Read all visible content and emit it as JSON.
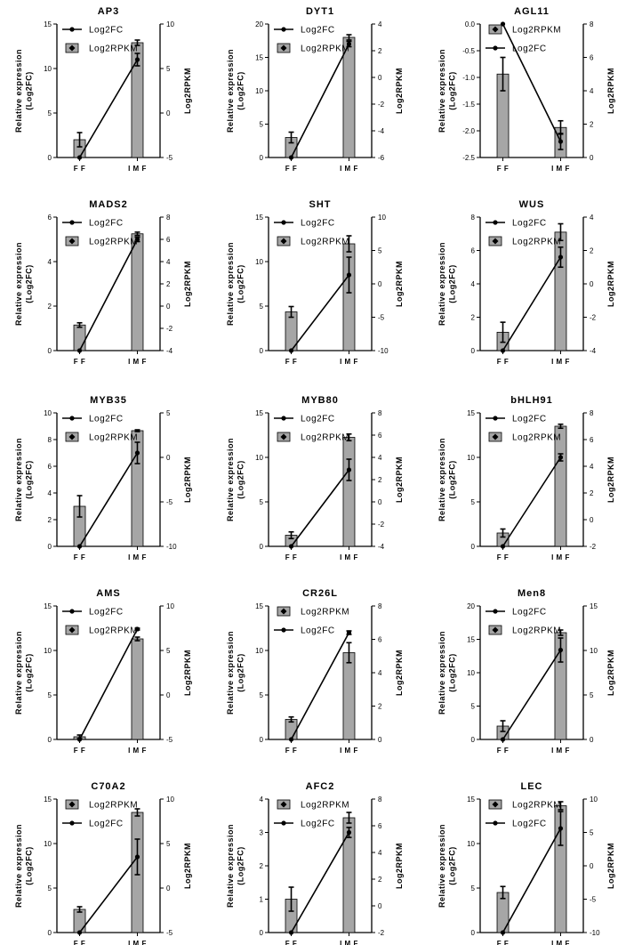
{
  "chart_data": [
    {
      "type": "bar",
      "title": "AP3",
      "ylabel": "Relative expression (Log2FC)",
      "y2label": "Log2RPKM",
      "categories": [
        "FF",
        "IMF"
      ],
      "ylim": [
        0,
        15
      ],
      "yticks": [
        0,
        5,
        10,
        15
      ],
      "y2lim": [
        -5,
        10
      ],
      "y2ticks": [
        -5,
        0,
        5,
        10
      ],
      "legend_order": [
        "Log2FC",
        "Log2RPKM"
      ],
      "series": [
        {
          "name": "Log2RPKM",
          "kind": "bar",
          "axis": "right",
          "values": [
            -3.0,
            7.9
          ],
          "errors": [
            0.8,
            0.3
          ]
        },
        {
          "name": "Log2FC",
          "kind": "line",
          "axis": "left",
          "values": [
            0,
            11.0
          ],
          "errors": [
            0,
            0.7
          ]
        }
      ]
    },
    {
      "type": "bar",
      "title": "DYT1",
      "ylabel": "Relative expression (Log2FC)",
      "y2label": "Log2RPKM",
      "categories": [
        "FF",
        "IMF"
      ],
      "ylim": [
        0,
        20
      ],
      "yticks": [
        0,
        5,
        10,
        15,
        20
      ],
      "y2lim": [
        -6,
        4
      ],
      "y2ticks": [
        -6,
        -4,
        -2,
        0,
        2,
        4
      ],
      "legend_order": [
        "Log2FC",
        "Log2RPKM"
      ],
      "series": [
        {
          "name": "Log2RPKM",
          "kind": "bar",
          "axis": "right",
          "values": [
            -4.5,
            3.0
          ],
          "errors": [
            0.4,
            0.2
          ]
        },
        {
          "name": "Log2FC",
          "kind": "line",
          "axis": "left",
          "values": [
            0,
            17.0
          ],
          "errors": [
            0,
            0.4
          ]
        }
      ]
    },
    {
      "type": "bar",
      "title": "AGL11",
      "ylabel": "Relative expression (Log2FC)",
      "y2label": "Log2RPKM",
      "categories": [
        "FF",
        "IMF"
      ],
      "ylim": [
        -2.5,
        0
      ],
      "yticks": [
        -2.5,
        -2.0,
        -1.5,
        -1.0,
        -0.5,
        0.0
      ],
      "ytick_labels": [
        "-2.5",
        "-2.0",
        "-1.5",
        "-1.0",
        "-0.5",
        "0.0"
      ],
      "y2lim": [
        0,
        8
      ],
      "y2ticks": [
        0,
        2,
        4,
        6,
        8
      ],
      "legend_order": [
        "Log2RPKM",
        "Log2FC"
      ],
      "series": [
        {
          "name": "Log2RPKM",
          "kind": "bar",
          "axis": "right",
          "values": [
            5.0,
            1.8
          ],
          "errors": [
            1.0,
            0.4
          ]
        },
        {
          "name": "Log2FC",
          "kind": "line",
          "axis": "left",
          "values": [
            0.0,
            -2.2
          ],
          "errors": [
            0,
            0.15
          ]
        }
      ]
    },
    {
      "type": "bar",
      "title": "MADS2",
      "ylabel": "Relative expression (Log2FC)",
      "y2label": "Log2RPKM",
      "categories": [
        "FF",
        "IMF"
      ],
      "ylim": [
        0,
        6
      ],
      "yticks": [
        0,
        2,
        4,
        6
      ],
      "y2lim": [
        -4,
        8
      ],
      "y2ticks": [
        -4,
        -2,
        0,
        2,
        4,
        6,
        8
      ],
      "legend_order": [
        "Log2FC",
        "Log2RPKM"
      ],
      "series": [
        {
          "name": "Log2RPKM",
          "kind": "bar",
          "axis": "right",
          "values": [
            -1.7,
            6.5
          ],
          "errors": [
            0.2,
            0.15
          ]
        },
        {
          "name": "Log2FC",
          "kind": "line",
          "axis": "left",
          "values": [
            0,
            5.0
          ],
          "errors": [
            0,
            0.1
          ]
        }
      ]
    },
    {
      "type": "bar",
      "title": "SHT",
      "ylabel": "Relative expression (Log2FC)",
      "y2label": "Log2RPKM",
      "categories": [
        "FF",
        "IMF"
      ],
      "ylim": [
        0,
        15
      ],
      "yticks": [
        0,
        5,
        10,
        15
      ],
      "y2lim": [
        -10,
        10
      ],
      "y2ticks": [
        -10,
        -5,
        0,
        5,
        10
      ],
      "legend_order": [
        "Log2FC",
        "Log2RPKM"
      ],
      "series": [
        {
          "name": "Log2RPKM",
          "kind": "bar",
          "axis": "right",
          "values": [
            -4.2,
            6.0
          ],
          "errors": [
            0.8,
            1.2
          ]
        },
        {
          "name": "Log2FC",
          "kind": "line",
          "axis": "left",
          "values": [
            0,
            8.5
          ],
          "errors": [
            0,
            2.0
          ]
        }
      ]
    },
    {
      "type": "bar",
      "title": "WUS",
      "ylabel": "Relative expression (Log2FC)",
      "y2label": "Log2RPKM",
      "categories": [
        "FF",
        "IMF"
      ],
      "ylim": [
        0,
        8
      ],
      "yticks": [
        0,
        2,
        4,
        6,
        8
      ],
      "y2lim": [
        -4,
        4
      ],
      "y2ticks": [
        -4,
        -2,
        0,
        2,
        4
      ],
      "legend_order": [
        "Log2FC",
        "Log2RPKM"
      ],
      "series": [
        {
          "name": "Log2RPKM",
          "kind": "bar",
          "axis": "right",
          "values": [
            -2.9,
            3.1
          ],
          "errors": [
            0.6,
            0.5
          ]
        },
        {
          "name": "Log2FC",
          "kind": "line",
          "axis": "left",
          "values": [
            0,
            5.6
          ],
          "errors": [
            0,
            0.6
          ]
        }
      ]
    },
    {
      "type": "bar",
      "title": "MYB35",
      "ylabel": "Relative expression (Log2FC)",
      "y2label": "Log2RPKM",
      "categories": [
        "FF",
        "IMF"
      ],
      "ylim": [
        0,
        10
      ],
      "yticks": [
        0,
        2,
        4,
        6,
        8,
        10
      ],
      "y2lim": [
        -10,
        5
      ],
      "y2ticks": [
        -10,
        -5,
        0,
        5
      ],
      "legend_order": [
        "Log2FC",
        "Log2RPKM"
      ],
      "series": [
        {
          "name": "Log2RPKM",
          "kind": "bar",
          "axis": "right",
          "values": [
            -5.5,
            3.0
          ],
          "errors": [
            1.2,
            0.1
          ]
        },
        {
          "name": "Log2FC",
          "kind": "line",
          "axis": "left",
          "values": [
            0,
            7.0
          ],
          "errors": [
            0,
            0.8
          ]
        }
      ]
    },
    {
      "type": "bar",
      "title": "MYB80",
      "ylabel": "Relative expression (Log2FC)",
      "y2label": "Log2RPKM",
      "categories": [
        "FF",
        "IMF"
      ],
      "ylim": [
        0,
        15
      ],
      "yticks": [
        0,
        5,
        10,
        15
      ],
      "y2lim": [
        -4,
        8
      ],
      "y2ticks": [
        -4,
        -2,
        0,
        2,
        4,
        6,
        8
      ],
      "legend_order": [
        "Log2FC",
        "Log2RPKM"
      ],
      "series": [
        {
          "name": "Log2RPKM",
          "kind": "bar",
          "axis": "right",
          "values": [
            -3.0,
            5.8
          ],
          "errors": [
            0.3,
            0.3
          ]
        },
        {
          "name": "Log2FC",
          "kind": "line",
          "axis": "left",
          "values": [
            0,
            8.6
          ],
          "errors": [
            0,
            1.2
          ]
        }
      ]
    },
    {
      "type": "bar",
      "title": "bHLH91",
      "ylabel": "Relative expression (Log2FC)",
      "y2label": "Log2RPKM",
      "categories": [
        "FF",
        "IMF"
      ],
      "ylim": [
        0,
        15
      ],
      "yticks": [
        0,
        5,
        10,
        15
      ],
      "y2lim": [
        -2,
        8
      ],
      "y2ticks": [
        -2,
        0,
        2,
        4,
        6,
        8
      ],
      "legend_order": [
        "Log2FC",
        "Log2RPKM"
      ],
      "series": [
        {
          "name": "Log2RPKM",
          "kind": "bar",
          "axis": "right",
          "values": [
            -1.0,
            7.0
          ],
          "errors": [
            0.3,
            0.15
          ]
        },
        {
          "name": "Log2FC",
          "kind": "line",
          "axis": "left",
          "values": [
            0,
            10.0
          ],
          "errors": [
            0,
            0.4
          ]
        }
      ]
    },
    {
      "type": "bar",
      "title": "AMS",
      "ylabel": "Relative expression (Log2FC)",
      "y2label": "Log2RPKM",
      "categories": [
        "FF",
        "IMF"
      ],
      "ylim": [
        0,
        15
      ],
      "yticks": [
        0,
        5,
        10,
        15
      ],
      "y2lim": [
        -5,
        10
      ],
      "y2ticks": [
        -5,
        0,
        5,
        10
      ],
      "legend_order": [
        "Log2FC",
        "Log2RPKM"
      ],
      "series": [
        {
          "name": "Log2RPKM",
          "kind": "bar",
          "axis": "right",
          "values": [
            -4.7,
            6.3
          ],
          "errors": [
            0.2,
            0.2
          ]
        },
        {
          "name": "Log2FC",
          "kind": "line",
          "axis": "left",
          "values": [
            0,
            12.4
          ],
          "errors": [
            0,
            0.1
          ]
        }
      ]
    },
    {
      "type": "bar",
      "title": "CR26L",
      "ylabel": "Relative expression (Log2FC)",
      "y2label": "Log2RPKM",
      "categories": [
        "FF",
        "IMF"
      ],
      "ylim": [
        0,
        15
      ],
      "yticks": [
        0,
        5,
        10,
        15
      ],
      "y2lim": [
        0,
        8
      ],
      "y2ticks": [
        0,
        2,
        4,
        6,
        8
      ],
      "legend_order": [
        "Log2RPKM",
        "Log2FC"
      ],
      "series": [
        {
          "name": "Log2RPKM",
          "kind": "bar",
          "axis": "right",
          "values": [
            1.2,
            5.2
          ],
          "errors": [
            0.15,
            0.6
          ]
        },
        {
          "name": "Log2FC",
          "kind": "line",
          "axis": "left",
          "values": [
            0,
            12.0
          ],
          "errors": [
            0,
            0.2
          ]
        }
      ]
    },
    {
      "type": "bar",
      "title": "Men8",
      "ylabel": "Relative expression (Log2FC)",
      "y2label": "Log2RPKM",
      "categories": [
        "FF",
        "IMF"
      ],
      "ylim": [
        0,
        20
      ],
      "yticks": [
        0,
        5,
        10,
        15,
        20
      ],
      "y2lim": [
        0,
        15
      ],
      "y2ticks": [
        0,
        5,
        10,
        15
      ],
      "legend_order": [
        "Log2FC",
        "Log2RPKM"
      ],
      "series": [
        {
          "name": "Log2RPKM",
          "kind": "bar",
          "axis": "right",
          "values": [
            1.5,
            12.0
          ],
          "errors": [
            0.6,
            0.3
          ]
        },
        {
          "name": "Log2FC",
          "kind": "line",
          "axis": "left",
          "values": [
            0,
            13.4
          ],
          "errors": [
            0,
            1.8
          ]
        }
      ]
    },
    {
      "type": "bar",
      "title": "C70A2",
      "ylabel": "Relative expression (Log2FC)",
      "y2label": "Log2RPKM",
      "categories": [
        "FF",
        "IMF"
      ],
      "ylim": [
        0,
        15
      ],
      "yticks": [
        0,
        5,
        10,
        15
      ],
      "y2lim": [
        -5,
        10
      ],
      "y2ticks": [
        -5,
        0,
        5,
        10
      ],
      "legend_order": [
        "Log2RPKM",
        "Log2FC"
      ],
      "series": [
        {
          "name": "Log2RPKM",
          "kind": "bar",
          "axis": "right",
          "values": [
            -2.4,
            8.5
          ],
          "errors": [
            0.3,
            0.4
          ]
        },
        {
          "name": "Log2FC",
          "kind": "line",
          "axis": "left",
          "values": [
            0,
            8.5
          ],
          "errors": [
            0,
            2.0
          ]
        }
      ]
    },
    {
      "type": "bar",
      "title": "AFC2",
      "ylabel": "Relative expression (Log2FC)",
      "y2label": "Log2RPKM",
      "categories": [
        "FF",
        "IMF"
      ],
      "ylim": [
        0,
        4
      ],
      "yticks": [
        0,
        1,
        2,
        3,
        4
      ],
      "y2lim": [
        -2,
        8
      ],
      "y2ticks": [
        -2,
        0,
        2,
        4,
        6,
        8
      ],
      "legend_order": [
        "Log2RPKM",
        "Log2FC"
      ],
      "series": [
        {
          "name": "Log2RPKM",
          "kind": "bar",
          "axis": "right",
          "values": [
            0.5,
            6.6
          ],
          "errors": [
            0.9,
            0.4
          ]
        },
        {
          "name": "Log2FC",
          "kind": "line",
          "axis": "left",
          "values": [
            0,
            3.0
          ],
          "errors": [
            0,
            0.15
          ]
        }
      ]
    },
    {
      "type": "bar",
      "title": "LEC",
      "ylabel": "Relative expression (Log2FC)",
      "y2label": "Log2RPKM",
      "categories": [
        "FF",
        "IMF"
      ],
      "ylim": [
        0,
        15
      ],
      "yticks": [
        0,
        5,
        10,
        15
      ],
      "y2lim": [
        -10,
        10
      ],
      "y2ticks": [
        -10,
        -5,
        0,
        5,
        10
      ],
      "legend_order": [
        "Log2RPKM",
        "Log2FC"
      ],
      "series": [
        {
          "name": "Log2RPKM",
          "kind": "bar",
          "axis": "right",
          "values": [
            -4.0,
            9.0
          ],
          "errors": [
            0.9,
            0.6
          ]
        },
        {
          "name": "Log2FC",
          "kind": "line",
          "axis": "left",
          "values": [
            0,
            11.7
          ],
          "errors": [
            0,
            1.9
          ]
        }
      ]
    }
  ],
  "colors": {
    "bar_fill": "#a6a6a6",
    "stroke": "#000000",
    "background": "#ffffff"
  }
}
